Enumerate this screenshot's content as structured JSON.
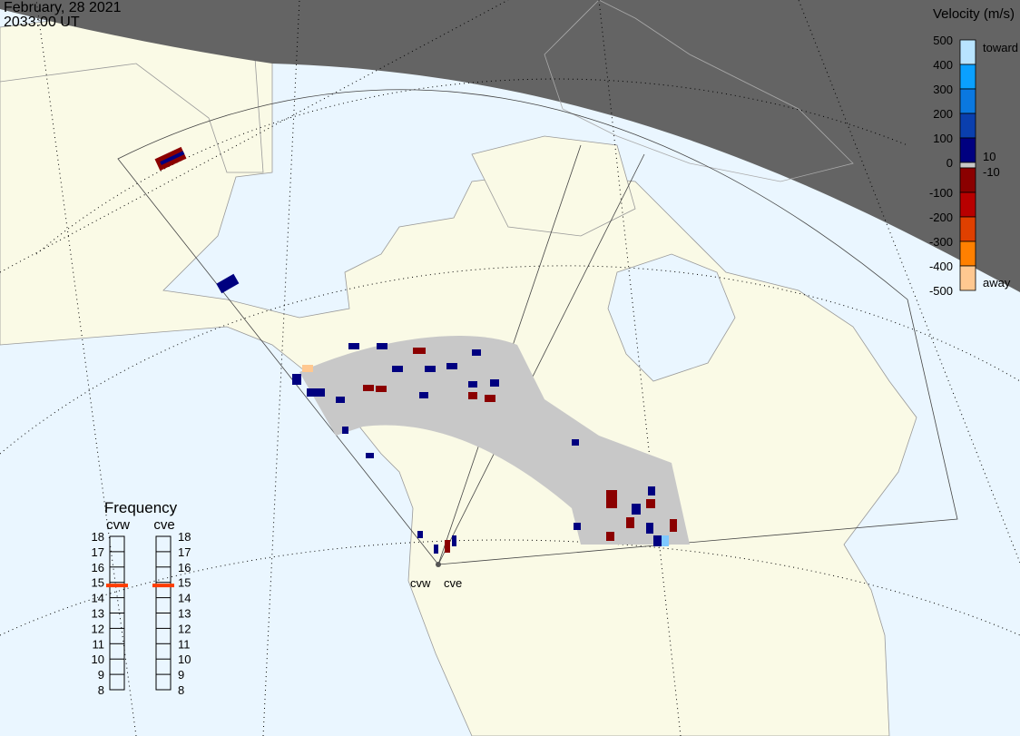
{
  "header": {
    "date": "February, 28 2021",
    "time": "2033:00 UT"
  },
  "colorbar": {
    "title": "Velocity (m/s)",
    "ticks": [
      "500",
      "400",
      "300",
      "200",
      "100",
      "0",
      "-100",
      "-200",
      "-300",
      "-400",
      "-500"
    ],
    "toward_label": "toward",
    "away_label": "away",
    "gs_upper": "10",
    "gs_lower": "-10",
    "colors": [
      "#b8e4ff",
      "#0aa0ff",
      "#0a78e0",
      "#0a3fae",
      "#000080",
      "#8b0000",
      "#b80000",
      "#e04000",
      "#ff8000",
      "#ffc890"
    ],
    "ground_scatter_color": "#c8c8c8"
  },
  "frequency_panel": {
    "title": "Frequency",
    "unit_range": [
      8,
      18
    ],
    "ticks": [
      "18",
      "17",
      "16",
      "15",
      "14",
      "13",
      "12",
      "11",
      "10",
      "9",
      "8"
    ],
    "radars": [
      {
        "name": "cvw",
        "frequency_mhz": 14.8
      },
      {
        "name": "cve",
        "frequency_mhz": 14.8
      }
    ],
    "marker_color": "#ff3c00"
  },
  "map": {
    "radar_labels": [
      "cvw",
      "cve"
    ],
    "ocean_color": "#eaf6ff",
    "land_color": "#fafae6",
    "night_color": "#646464"
  }
}
